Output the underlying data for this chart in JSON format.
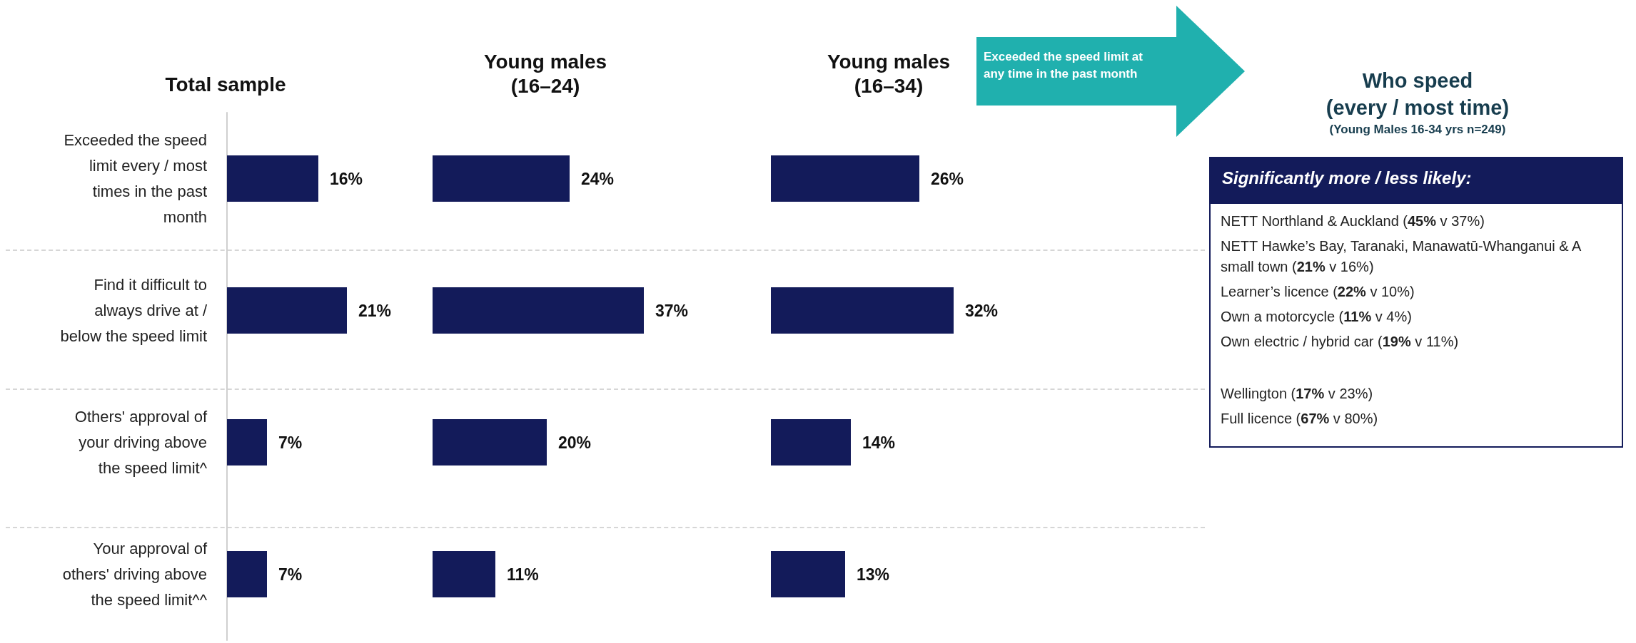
{
  "chart_data": [
    {
      "type": "bar",
      "orientation": "horizontal",
      "title": "Total sample",
      "categories": [
        "Exceeded the speed\nlimit every / most\ntimes in the past\nmonth",
        "Find it difficult to\nalways drive at /\nbelow the speed limit",
        "Others' approval of\nyour driving above\nthe speed limit^",
        "Your approval of\nothers' driving above\nthe speed limit^^"
      ],
      "values": [
        16,
        21,
        7,
        7
      ],
      "value_labels": [
        "16%",
        "21%",
        "7%",
        "7%"
      ],
      "color": "#131b5a",
      "tick_labels": "y"
    },
    {
      "type": "bar",
      "orientation": "horizontal",
      "title": "Young males\n(16–24)",
      "categories": [
        null,
        null,
        null,
        null
      ],
      "values": [
        24,
        37,
        20,
        11
      ],
      "value_labels": [
        "24%",
        "37%",
        "20%",
        "11%"
      ],
      "color": "#131b5a",
      "tick_labels": false
    },
    {
      "type": "bar",
      "orientation": "horizontal",
      "title": "Young males\n(16–34)",
      "categories": [
        null,
        null,
        null,
        null
      ],
      "values": [
        26,
        32,
        14,
        13
      ],
      "value_labels": [
        "26%",
        "32%",
        "14%",
        "13%"
      ],
      "color": "#131b5a",
      "tick_labels": false
    },
    {
      "type": "other",
      "title": "Who speed\n(every / most time)",
      "subtitle": "(Young Males 16-34 yrs n=249)",
      "annotations": [
        "Exceeded the speed limit at any time in the past month",
        "Significantly  more / less likely:",
        "NETT Northland & Auckland  (45% v 37%)",
        "NETT Hawke’s Bay, Taranaki, Manawatū-Whanganui & A small town (21% v 16%)",
        "Learner’s licence (22% v 10%)",
        "Own a motorcycle (11% v 4%)",
        "Own electric / hybrid car (19% v 11%)",
        "Wellington  (17% v 23%)",
        "Full licence (67% v 80%)"
      ]
    }
  ]
}
